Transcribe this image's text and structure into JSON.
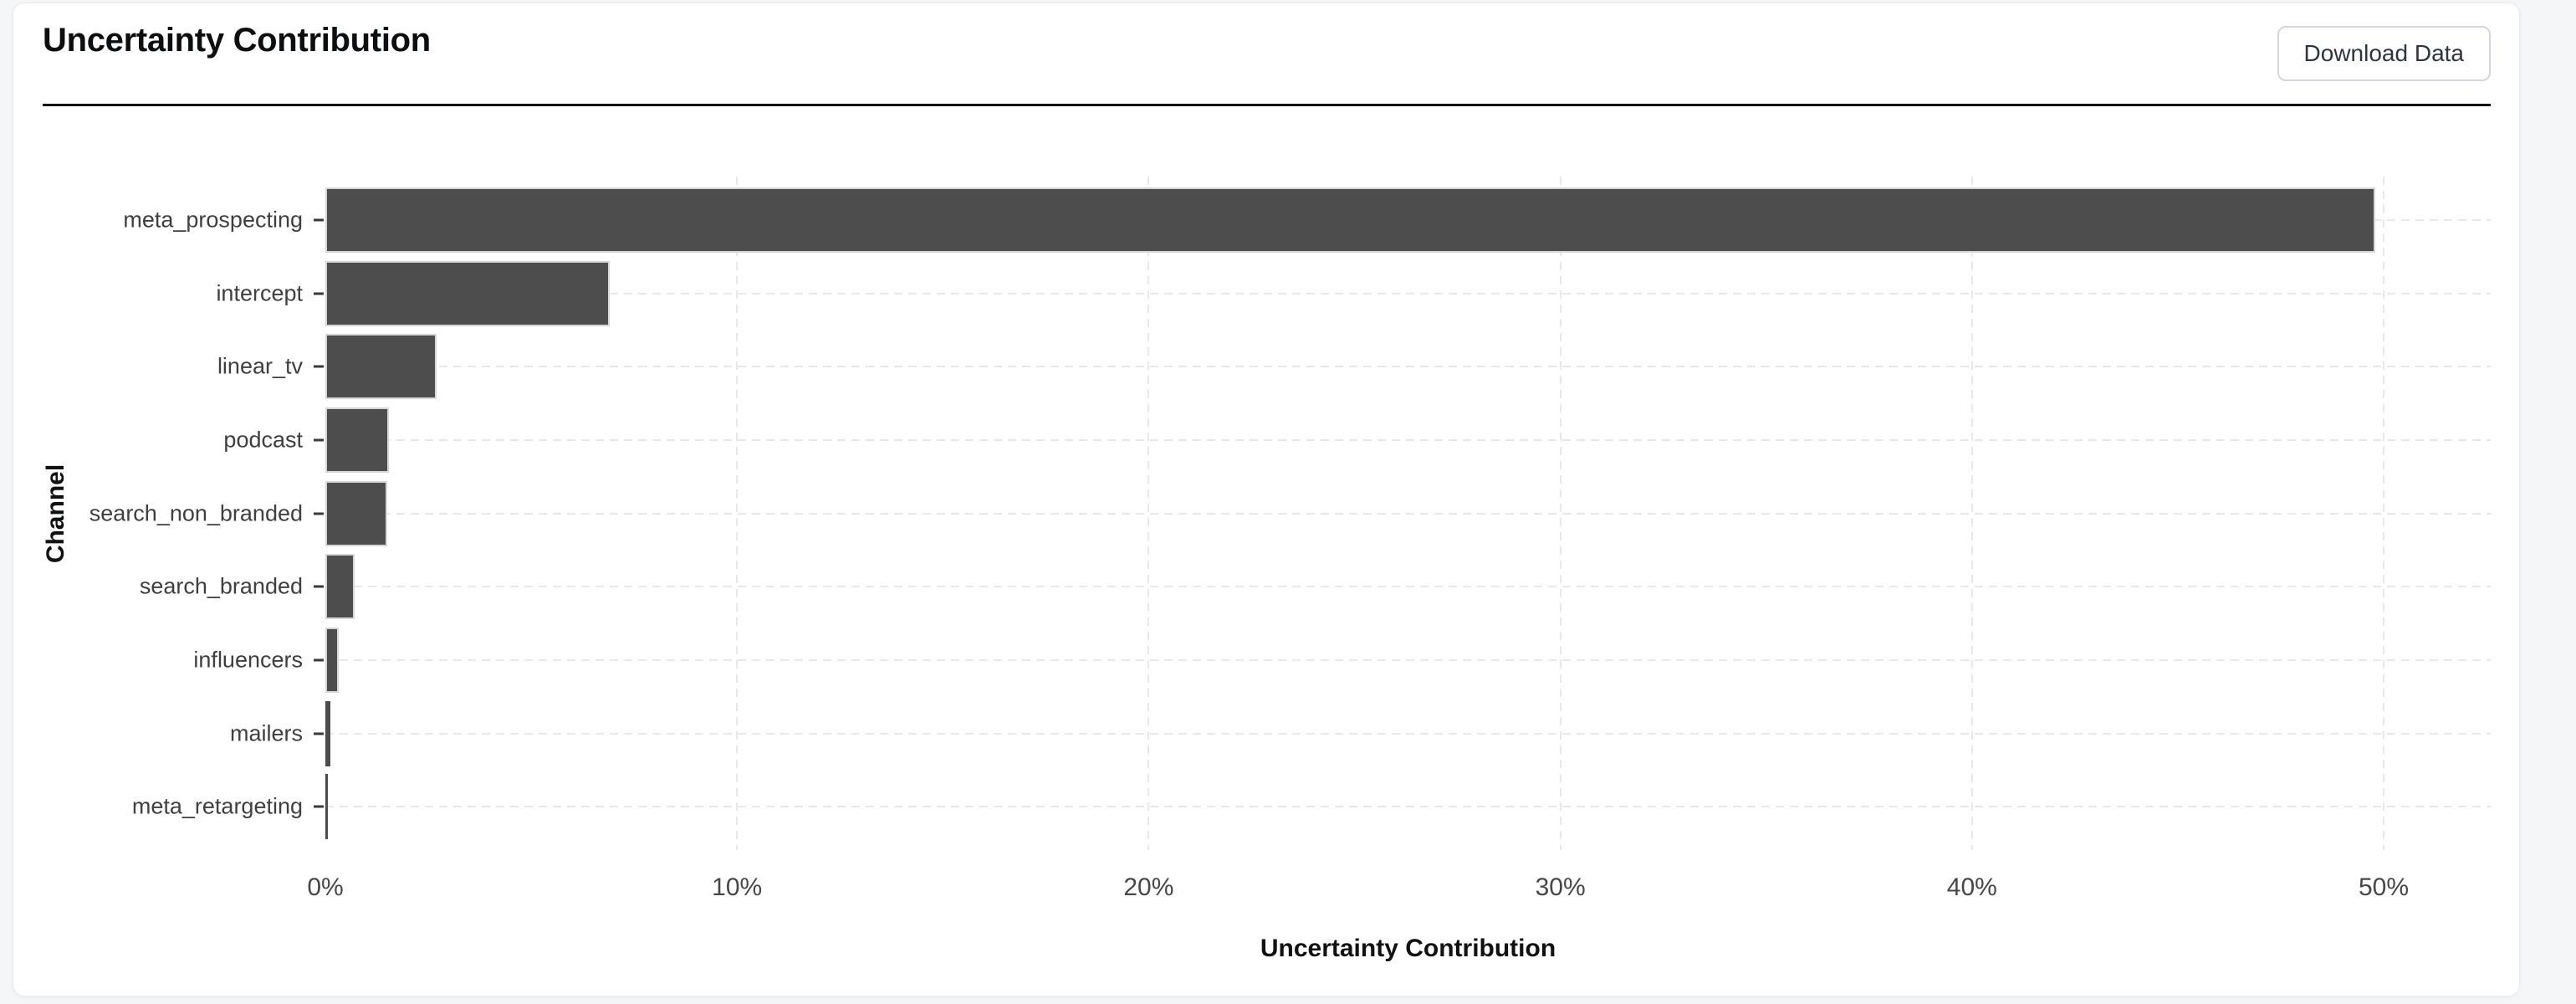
{
  "header": {
    "title": "Uncertainty Contribution",
    "download_button_label": "Download Data"
  },
  "chart_data": {
    "type": "bar",
    "orientation": "horizontal",
    "title": "Uncertainty Contribution",
    "xlabel": "Uncertainty Contribution",
    "ylabel": "Channel",
    "categories": [
      "meta_prospecting",
      "intercept",
      "linear_tv",
      "podcast",
      "search_non_branded",
      "search_branded",
      "influencers",
      "mailers",
      "meta_retargeting"
    ],
    "values": [
      49.8,
      6.9,
      2.7,
      1.55,
      1.5,
      0.72,
      0.33,
      0.12,
      0.05
    ],
    "unit": "%",
    "xlim": [
      0,
      52.6
    ],
    "xticks": [
      {
        "value": 0,
        "label": "0%"
      },
      {
        "value": 10,
        "label": "10%"
      },
      {
        "value": 20,
        "label": "20%"
      },
      {
        "value": 30,
        "label": "30%"
      },
      {
        "value": 40,
        "label": "40%"
      },
      {
        "value": 50,
        "label": "50%"
      }
    ],
    "grid": "dashed",
    "legend": false,
    "colors": {
      "bar": "#4d4d4d",
      "bar_border": "#d6d6d6",
      "grid": "#e8e8e8",
      "x_tick_text": "#474747",
      "y_label_text": "#3f3f3f",
      "axis_title_text": "#101112"
    }
  }
}
